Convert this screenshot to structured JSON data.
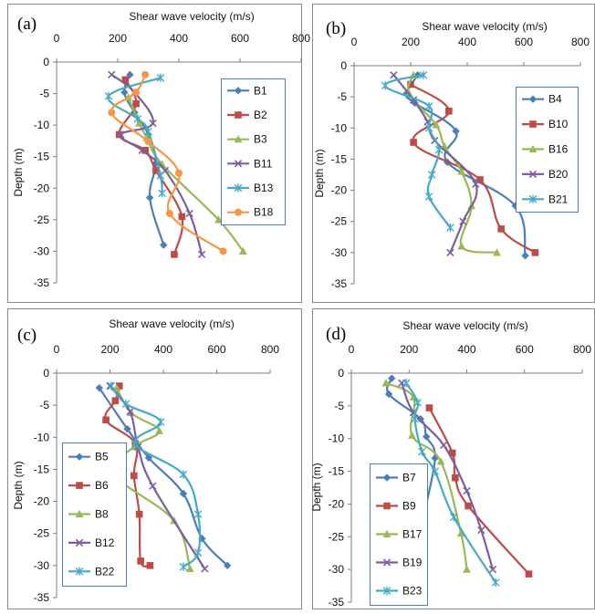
{
  "chart_data": [
    {
      "type": "line",
      "panel_label": "(a)",
      "xlabel": "Shear wave velocity (m/s)",
      "ylabel": "Depth (m)",
      "xlim": [
        0,
        800
      ],
      "ylim": [
        -35,
        0
      ],
      "x_ticks": [
        0,
        200,
        400,
        600,
        800
      ],
      "y_ticks": [
        0,
        -5,
        -10,
        -15,
        -20,
        -25,
        -30,
        -35
      ],
      "x_axis_position": "top",
      "grid": false,
      "legend_position": "right",
      "series": [
        {
          "name": "B1",
          "color": "#4a7ebb",
          "marker": "diamond",
          "points": [
            [
              240,
              -2.0
            ],
            [
              222,
              -4.8
            ],
            [
              255,
              -8.0
            ],
            [
              300,
              -11.5
            ],
            [
              325,
              -16.0
            ],
            [
              305,
              -21.5
            ],
            [
              350,
              -29.0
            ]
          ]
        },
        {
          "name": "B2",
          "color": "#be4b48",
          "marker": "square",
          "points": [
            [
              225,
              -2.8
            ],
            [
              260,
              -6.6
            ],
            [
              205,
              -11.5
            ],
            [
              290,
              -14.0
            ],
            [
              325,
              -17.2
            ],
            [
              410,
              -24.5
            ],
            [
              385,
              -30.5
            ]
          ]
        },
        {
          "name": "B3",
          "color": "#98b954",
          "marker": "triangle",
          "points": [
            [
              235,
              -5.6
            ],
            [
              270,
              -9.7
            ],
            [
              295,
              -12.0
            ],
            [
              345,
              -16.2
            ],
            [
              530,
              -25.0
            ],
            [
              610,
              -30.0
            ]
          ]
        },
        {
          "name": "B11",
          "color": "#7d5fa0",
          "marker": "x",
          "points": [
            [
              180,
              -2.0
            ],
            [
              255,
              -4.8
            ],
            [
              315,
              -9.7
            ],
            [
              210,
              -11.5
            ],
            [
              280,
              -14.0
            ],
            [
              355,
              -17.2
            ],
            [
              435,
              -24.0
            ],
            [
              475,
              -30.5
            ]
          ]
        },
        {
          "name": "B13",
          "color": "#46aac5",
          "marker": "asterisk",
          "points": [
            [
              340,
              -2.5
            ],
            [
              170,
              -5.4
            ],
            [
              265,
              -9.0
            ],
            [
              300,
              -11.0
            ],
            [
              340,
              -18.0
            ],
            [
              345,
              -20.8
            ]
          ]
        },
        {
          "name": "B18",
          "color": "#f79646",
          "marker": "circle",
          "points": [
            [
              290,
              -2.0
            ],
            [
              260,
              -4.8
            ],
            [
              180,
              -8.0
            ],
            [
              300,
              -12.6
            ],
            [
              400,
              -17.6
            ],
            [
              370,
              -24.0
            ],
            [
              545,
              -30.0
            ]
          ]
        }
      ]
    },
    {
      "type": "line",
      "panel_label": "(b)",
      "xlabel": "Shear wave velocity (m/s)",
      "ylabel": "Depth (m)",
      "xlim": [
        0,
        800
      ],
      "ylim": [
        -35,
        0
      ],
      "x_ticks": [
        0,
        200,
        400,
        600,
        800
      ],
      "y_ticks": [
        0,
        -5,
        -10,
        -15,
        -20,
        -25,
        -30,
        -35
      ],
      "x_axis_position": "top",
      "grid": false,
      "legend_position": "right",
      "series": [
        {
          "name": "B4",
          "color": "#4a7ebb",
          "marker": "diamond",
          "points": [
            [
              225,
              -1.5
            ],
            [
              185,
              -4.5
            ],
            [
              215,
              -6.0
            ],
            [
              360,
              -10.5
            ],
            [
              330,
              -15.5
            ],
            [
              570,
              -22.5
            ],
            [
              605,
              -30.5
            ]
          ]
        },
        {
          "name": "B10",
          "color": "#be4b48",
          "marker": "square",
          "points": [
            [
              200,
              -3.0
            ],
            [
              335,
              -7.3
            ],
            [
              210,
              -12.3
            ],
            [
              445,
              -18.3
            ],
            [
              520,
              -26.2
            ],
            [
              640,
              -30.0
            ]
          ]
        },
        {
          "name": "B16",
          "color": "#98b954",
          "marker": "triangle",
          "points": [
            [
              210,
              -1.5
            ],
            [
              195,
              -4.5
            ],
            [
              290,
              -9.5
            ],
            [
              320,
              -13.0
            ],
            [
              380,
              -17.0
            ],
            [
              415,
              -22.5
            ],
            [
              380,
              -29.0
            ],
            [
              505,
              -30.0
            ]
          ]
        },
        {
          "name": "B20",
          "color": "#7d5fa0",
          "marker": "x",
          "points": [
            [
              140,
              -1.5
            ],
            [
              210,
              -5.5
            ],
            [
              260,
              -9.0
            ],
            [
              285,
              -12.0
            ],
            [
              430,
              -19.0
            ],
            [
              385,
              -25.0
            ],
            [
              340,
              -30.0
            ]
          ]
        },
        {
          "name": "B21",
          "color": "#46aac5",
          "marker": "asterisk",
          "points": [
            [
              245,
              -1.5
            ],
            [
              110,
              -3.2
            ],
            [
              265,
              -6.5
            ],
            [
              265,
              -10.0
            ],
            [
              300,
              -13.5
            ],
            [
              275,
              -17.5
            ],
            [
              265,
              -21.0
            ],
            [
              340,
              -26.0
            ]
          ]
        }
      ]
    },
    {
      "type": "line",
      "panel_label": "(c)",
      "xlabel": "Shear wave velocity (m/s)",
      "ylabel": "Depth (m)",
      "xlim": [
        0,
        800
      ],
      "ylim": [
        -35,
        0
      ],
      "x_ticks": [
        0,
        200,
        400,
        600,
        800
      ],
      "y_ticks": [
        0,
        -5,
        -10,
        -15,
        -20,
        -25,
        -30,
        -35
      ],
      "x_axis_position": "top",
      "grid": false,
      "legend_position": "left",
      "series": [
        {
          "name": "B5",
          "color": "#4a7ebb",
          "marker": "diamond",
          "points": [
            [
              160,
              -2.3
            ],
            [
              265,
              -8.7
            ],
            [
              345,
              -13.2
            ],
            [
              475,
              -18.8
            ],
            [
              545,
              -25.8
            ],
            [
              640,
              -30.0
            ]
          ]
        },
        {
          "name": "B6",
          "color": "#be4b48",
          "marker": "square",
          "points": [
            [
              235,
              -2.0
            ],
            [
              220,
              -4.3
            ],
            [
              185,
              -7.3
            ],
            [
              295,
              -11.0
            ],
            [
              290,
              -16.0
            ],
            [
              310,
              -22.0
            ],
            [
              315,
              -29.3
            ],
            [
              350,
              -30.0
            ]
          ]
        },
        {
          "name": "B8",
          "color": "#98b954",
          "marker": "triangle",
          "points": [
            [
              225,
              -2.3
            ],
            [
              280,
              -6.2
            ],
            [
              385,
              -9.0
            ],
            [
              290,
              -11.5
            ],
            [
              215,
              -15.7
            ],
            [
              440,
              -23.0
            ],
            [
              500,
              -30.5
            ]
          ]
        },
        {
          "name": "B12",
          "color": "#7d5fa0",
          "marker": "x",
          "points": [
            [
              200,
              -2.0
            ],
            [
              275,
              -6.0
            ],
            [
              305,
              -11.5
            ],
            [
              360,
              -17.6
            ],
            [
              555,
              -30.5
            ]
          ]
        },
        {
          "name": "B22",
          "color": "#46aac5",
          "marker": "asterisk",
          "points": [
            [
              205,
              -2.0
            ],
            [
              260,
              -4.8
            ],
            [
              390,
              -7.6
            ],
            [
              295,
              -11.0
            ],
            [
              475,
              -15.8
            ],
            [
              530,
              -22.0
            ],
            [
              530,
              -28.0
            ],
            [
              475,
              -30.2
            ]
          ]
        }
      ]
    },
    {
      "type": "line",
      "panel_label": "(d)",
      "xlabel": "Shear wave velocity (m/s)",
      "ylabel": "Depth (m)",
      "xlim": [
        0,
        800
      ],
      "ylim": [
        -35,
        0
      ],
      "x_ticks": [
        0,
        200,
        400,
        600,
        800
      ],
      "y_ticks": [
        0,
        -5,
        -10,
        -15,
        -20,
        -25,
        -30,
        -35
      ],
      "x_axis_position": "top",
      "grid": false,
      "legend_position": "left",
      "series": [
        {
          "name": "B7",
          "color": "#4a7ebb",
          "marker": "diamond",
          "points": [
            [
              140,
              -0.8
            ],
            [
              130,
              -3.2
            ],
            [
              240,
              -7.0
            ],
            [
              260,
              -9.7
            ],
            [
              290,
              -13.0
            ],
            [
              250,
              -22.5
            ],
            [
              250,
              -28.0
            ]
          ]
        },
        {
          "name": "B9",
          "color": "#be4b48",
          "marker": "square",
          "points": [
            [
              270,
              -5.3
            ],
            [
              350,
              -12.2
            ],
            [
              360,
              -16.0
            ],
            [
              405,
              -20.3
            ],
            [
              615,
              -30.7
            ]
          ]
        },
        {
          "name": "B17",
          "color": "#98b954",
          "marker": "triangle",
          "points": [
            [
              120,
              -1.5
            ],
            [
              215,
              -3.7
            ],
            [
              210,
              -9.5
            ],
            [
              310,
              -13.5
            ],
            [
              380,
              -24.5
            ],
            [
              400,
              -30.0
            ]
          ]
        },
        {
          "name": "B19",
          "color": "#7d5fa0",
          "marker": "x",
          "points": [
            [
              175,
              -1.5
            ],
            [
              215,
              -6.0
            ],
            [
              320,
              -11.0
            ],
            [
              400,
              -18.0
            ],
            [
              450,
              -24.0
            ],
            [
              490,
              -30.0
            ]
          ]
        },
        {
          "name": "B23",
          "color": "#46aac5",
          "marker": "asterisk",
          "points": [
            [
              190,
              -1.5
            ],
            [
              230,
              -4.5
            ],
            [
              220,
              -7.0
            ],
            [
              245,
              -12.0
            ],
            [
              290,
              -15.0
            ],
            [
              355,
              -22.0
            ],
            [
              500,
              -32.0
            ]
          ]
        }
      ]
    }
  ]
}
